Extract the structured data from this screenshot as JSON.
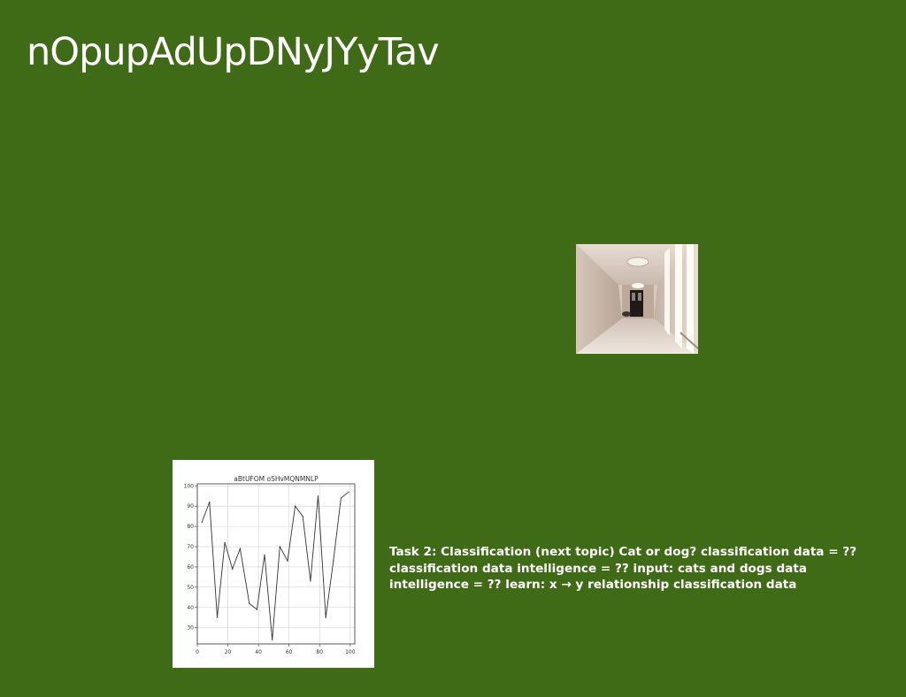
{
  "slide": {
    "title": "nOpupAdUpDNyJYyTav",
    "body_text": "Task 2: Classification (next topic) Cat or dog? classification data = ?? classification data intelligence = ?? input: cats and dogs data intelligence = ?? learn: x → y relationship classification data"
  },
  "colors": {
    "background": "#3f6b16",
    "text": "#ffffff",
    "line": "#333333",
    "grid": "#d0d0d0"
  },
  "photo": {
    "subject": "hallway-corridor-photo"
  },
  "chart_data": {
    "type": "line",
    "title": "aBtUFOM oSHvMQNMNLP",
    "xlabel": "",
    "ylabel": "",
    "xlim": [
      0,
      103
    ],
    "ylim": [
      22,
      101
    ],
    "xticks": [
      0,
      20,
      40,
      60,
      80,
      100
    ],
    "yticks": [
      30,
      40,
      50,
      60,
      70,
      80,
      90,
      100
    ],
    "grid": true,
    "series": [
      {
        "x": [
          3,
          8,
          13,
          18,
          23,
          28,
          34,
          39,
          44,
          49,
          54,
          59,
          64,
          69,
          74,
          79,
          84,
          89,
          94,
          99
        ],
        "y": [
          82,
          92,
          35,
          72,
          59,
          69,
          42,
          39,
          66,
          24,
          70,
          63,
          90,
          85,
          53,
          95,
          35,
          63,
          94,
          97
        ]
      }
    ]
  }
}
